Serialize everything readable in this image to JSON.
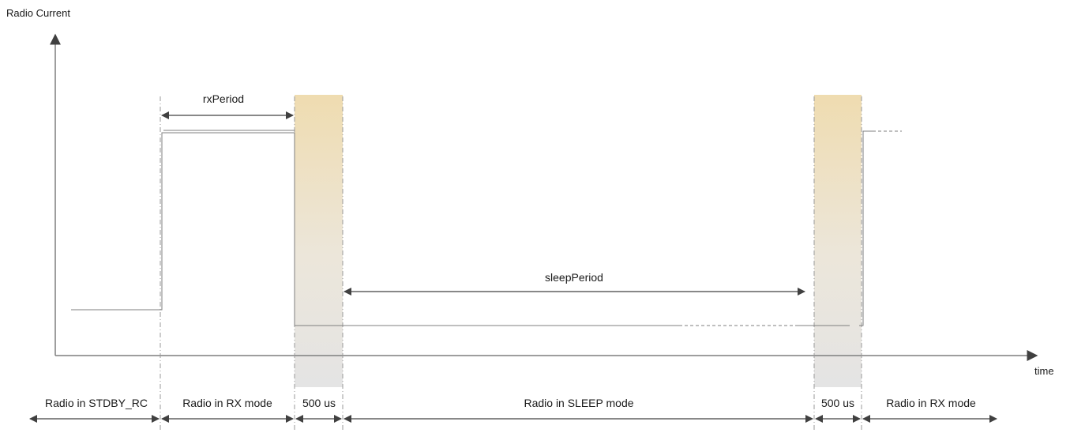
{
  "axes": {
    "y_label": "Radio Current",
    "x_label": "time"
  },
  "annotations": {
    "rx_period": "rxPeriod",
    "sleep_period": "sleepPeriod"
  },
  "phases": [
    {
      "id": "standby",
      "label": "Radio in STDBY_RC"
    },
    {
      "id": "rx1",
      "label": "Radio in RX mode"
    },
    {
      "id": "wake1",
      "label": "500 us"
    },
    {
      "id": "sleep",
      "label": "Radio in SLEEP mode"
    },
    {
      "id": "wake2",
      "label": "500 us"
    },
    {
      "id": "rx2",
      "label": "Radio in RX mode"
    }
  ],
  "colors": {
    "line": "#7f7f7f",
    "arrow": "#404040",
    "guide": "#9a9a9a",
    "band_top": "#efdcb0",
    "band_bottom": "#e6e6e6"
  }
}
